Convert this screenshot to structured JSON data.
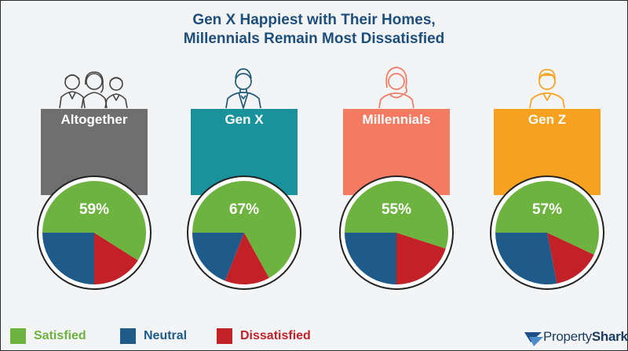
{
  "title_line1": "Gen X Happiest with Their Homes,",
  "title_line2": "Millennials Remain Most Dissatisfied",
  "colors": {
    "satisfied": "#6cb33f",
    "neutral": "#1e5b8a",
    "dissatisfied": "#c22127"
  },
  "legend": {
    "satisfied": "Satisfied",
    "neutral": "Neutral",
    "dissatisfied": "Dissatisfied"
  },
  "brand": {
    "property": "Property",
    "shark": "Shark"
  },
  "chart_data": [
    {
      "type": "pie",
      "title": "Altogether",
      "banner_color": "#6f6f6f",
      "label": "59%",
      "slices": [
        {
          "category": "Satisfied",
          "value": 59
        },
        {
          "category": "Dissatisfied",
          "value": 16
        },
        {
          "category": "Neutral",
          "value": 25
        }
      ]
    },
    {
      "type": "pie",
      "title": "Gen X",
      "banner_color": "#19929c",
      "label": "67%",
      "slices": [
        {
          "category": "Satisfied",
          "value": 67
        },
        {
          "category": "Dissatisfied",
          "value": 14
        },
        {
          "category": "Neutral",
          "value": 19
        }
      ]
    },
    {
      "type": "pie",
      "title": "Millennials",
      "banner_color": "#f47a62",
      "label": "55%",
      "slices": [
        {
          "category": "Satisfied",
          "value": 55
        },
        {
          "category": "Dissatisfied",
          "value": 20
        },
        {
          "category": "Neutral",
          "value": 25
        }
      ]
    },
    {
      "type": "pie",
      "title": "Gen Z",
      "banner_color": "#f6a11f",
      "label": "57%",
      "slices": [
        {
          "category": "Satisfied",
          "value": 57
        },
        {
          "category": "Dissatisfied",
          "value": 15
        },
        {
          "category": "Neutral",
          "value": 28
        }
      ]
    }
  ]
}
